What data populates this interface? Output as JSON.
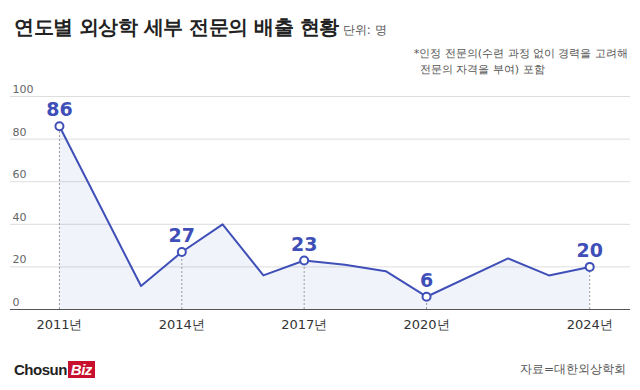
{
  "chart_data": {
    "type": "line",
    "title": "연도별 외상학 세부 전문의 배출 현황",
    "subtitle": "단위: 명",
    "note": [
      "*인정 전문의(수련 과정 없이 경력을 고려해",
      "전문의 자격을 부여) 포함"
    ],
    "source": "자료=대한외상학회",
    "logo": [
      "Chosun",
      "Biz"
    ],
    "x": [
      2011,
      2013,
      2014,
      2015,
      2016,
      2017,
      2018,
      2019,
      2020,
      2022,
      2023,
      2024
    ],
    "values": [
      86,
      11,
      27,
      40,
      16,
      23,
      21,
      18,
      6,
      24,
      16,
      20
    ],
    "color": "#3f4fb8",
    "marker": "circle",
    "xlim": [
      2009.8,
      2025
    ],
    "xticks": [
      {
        "value": 2011,
        "label": "2011년"
      },
      {
        "value": 2014,
        "label": "2014년"
      },
      {
        "value": 2017,
        "label": "2017년"
      },
      {
        "value": 2020,
        "label": "2020년"
      },
      {
        "value": 2024,
        "label": "2024년"
      }
    ],
    "ylim": [
      0,
      100
    ],
    "yticks": [
      0,
      20,
      40,
      60,
      80,
      100
    ],
    "grid": true,
    "annotations": [
      {
        "x": 2011,
        "value": 86
      },
      {
        "x": 2014,
        "value": 27
      },
      {
        "x": 2017,
        "value": 23
      },
      {
        "x": 2020,
        "value": 6
      },
      {
        "x": 2024,
        "value": 20
      }
    ]
  }
}
